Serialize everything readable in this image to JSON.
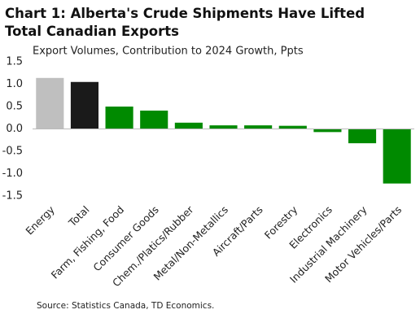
{
  "chart_data": {
    "type": "bar",
    "title": "Chart 1: Alberta's Crude Shipments Have Lifted Total Canadian Exports",
    "subtitle": "Export Volumes, Contribution to 2024 Growth, Ppts",
    "source": "Source: Statistics Canada, TD Economics.",
    "categories": [
      "Energy",
      "Total",
      "Farm, Fishing, Food",
      "Consumer Goods",
      "Chem./Platics/Rubber",
      "Metal/Non-Metallics",
      "Aircraft/Parts",
      "Forestry",
      "Electronics",
      "Industrial Machinery",
      "Motor Vehicles/Parts"
    ],
    "values": [
      1.14,
      1.05,
      0.5,
      0.41,
      0.14,
      0.08,
      0.08,
      0.07,
      -0.07,
      -0.32,
      -1.22
    ],
    "colors": [
      "#bfbfbf",
      "#1a1a1a",
      "#008a00",
      "#008a00",
      "#008a00",
      "#008a00",
      "#008a00",
      "#008a00",
      "#008a00",
      "#008a00",
      "#008a00"
    ],
    "ylim": [
      -1.5,
      1.5
    ],
    "yticks": [
      1.5,
      {
        "value": 1.0,
        "label": "1.0"
      },
      0.5,
      {
        "value": 0.0,
        "label": "0.0"
      },
      -0.5,
      {
        "value": -1.0,
        "label": "-1.0"
      },
      -1.5
    ],
    "grid": false
  }
}
